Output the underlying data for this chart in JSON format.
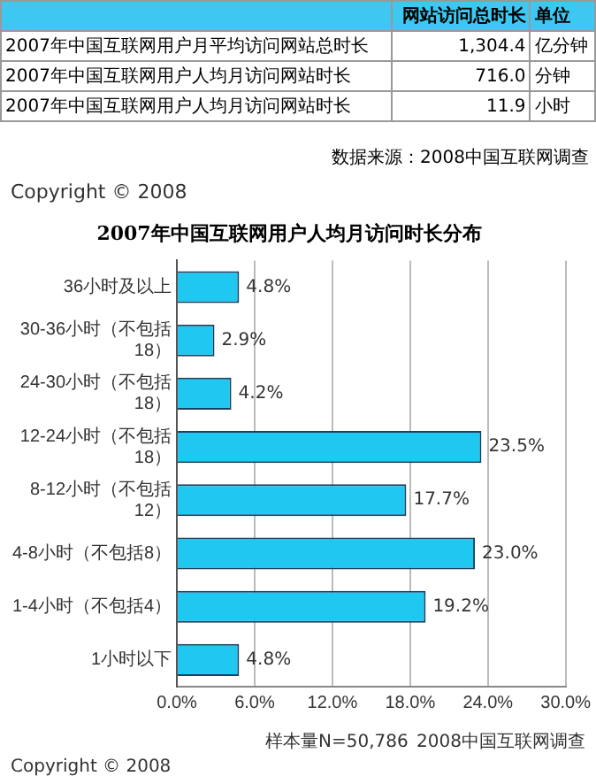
{
  "chart_data": {
    "type": "bar",
    "orientation": "horizontal",
    "title": "2007年中国互联网用户人均月访问时长分布",
    "categories": [
      "36小时及以上",
      "30-36小时（不包括18）",
      "24-30小时（不包括18）",
      "12-24小时（不包括18）",
      "8-12小时（不包括12）",
      "4-8小时（不包括8）",
      "1-4小时（不包括4）",
      "1小时以下"
    ],
    "values": [
      4.8,
      2.9,
      4.2,
      23.5,
      17.7,
      23.0,
      19.2,
      4.8
    ],
    "value_labels": [
      "4.8%",
      "2.9%",
      "4.2%",
      "23.5%",
      "17.7%",
      "23.0%",
      "19.2%",
      "4.8%"
    ],
    "color": "#1ec8f0",
    "xlim": [
      0,
      30
    ],
    "xticks": [
      {
        "value": 0,
        "label": "0.0%"
      },
      {
        "value": 6,
        "label": "6.0%"
      },
      {
        "value": 12,
        "label": "12.0%"
      },
      {
        "value": 18,
        "label": "18.0%"
      },
      {
        "value": 24,
        "label": "24.0%"
      },
      {
        "value": 30,
        "label": "30.0%"
      }
    ],
    "grid": "x",
    "legend": false,
    "annotations": [
      "网站访问总时长",
      "单位",
      "2007年中国互联网用户月平均访问网站总时长",
      "1,304.4",
      "亿分钟",
      "2007年中国互联网用户人均月访问网站时长",
      "716.0",
      "分钟",
      "2007年中国互联网用户人均月访问网站时长",
      "11.9",
      "小时",
      "数据来源：2008中国互联网调查",
      "Copyright © 2008",
      "样本量N=50,786",
      "2008中国互联网调查",
      "Copyright © 2008"
    ]
  }
}
